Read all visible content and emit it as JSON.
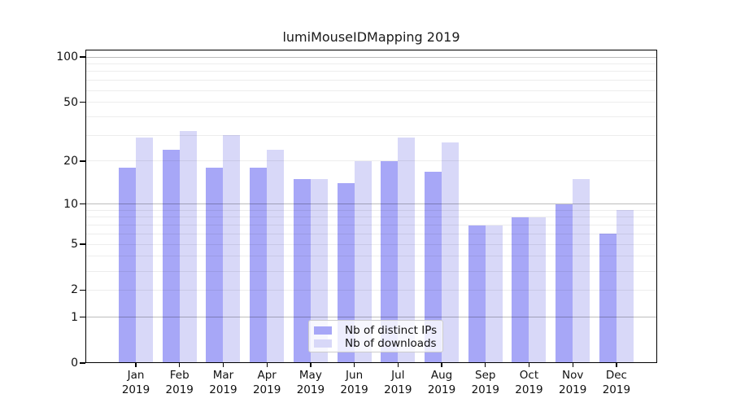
{
  "chart_data": {
    "type": "bar",
    "title": "lumiMouseIDMapping 2019",
    "categories": [
      "Jan",
      "Feb",
      "Mar",
      "Apr",
      "May",
      "Jun",
      "Jul",
      "Aug",
      "Sep",
      "Oct",
      "Nov",
      "Dec"
    ],
    "year": "2019",
    "series": [
      {
        "name": "Nb of distinct IPs",
        "color": "#a7a7f7",
        "values": [
          18,
          24,
          18,
          18,
          15,
          14,
          20,
          17,
          7,
          8,
          10,
          6
        ]
      },
      {
        "name": "Nb of downloads",
        "color": "#d8d8f8",
        "values": [
          29,
          32,
          30,
          24,
          15,
          20,
          29,
          27,
          7,
          8,
          15,
          9
        ]
      }
    ],
    "yscale": "symlog-log1p",
    "ylabel": "",
    "xlabel": "",
    "ylim": [
      0,
      113
    ],
    "ytick_values": [
      0,
      1,
      2,
      5,
      10,
      20,
      50,
      100
    ],
    "ytick_labels": [
      "0",
      "1",
      "2",
      "5",
      "10",
      "20",
      "50",
      "100"
    ],
    "major_grid_values": [
      1,
      10,
      100
    ],
    "minor_grid_values": [
      2,
      3,
      4,
      5,
      6,
      7,
      8,
      9,
      20,
      30,
      40,
      50,
      60,
      70,
      80,
      90
    ],
    "grid": true,
    "legend_position": "lower center inside"
  },
  "legend": {
    "items": [
      {
        "label": "Nb of distinct IPs"
      },
      {
        "label": "Nb of downloads"
      }
    ]
  },
  "colors": {
    "bar_distinct_ips": "#a7a7f7",
    "bar_downloads": "#d8d8f8",
    "axis": "#000000",
    "major_grid": "#bdbdbd",
    "minor_grid": "#ededed",
    "text": "#111111",
    "legend_border": "#cccccc",
    "legend_background": "#ffffff",
    "background": "#ffffff"
  }
}
